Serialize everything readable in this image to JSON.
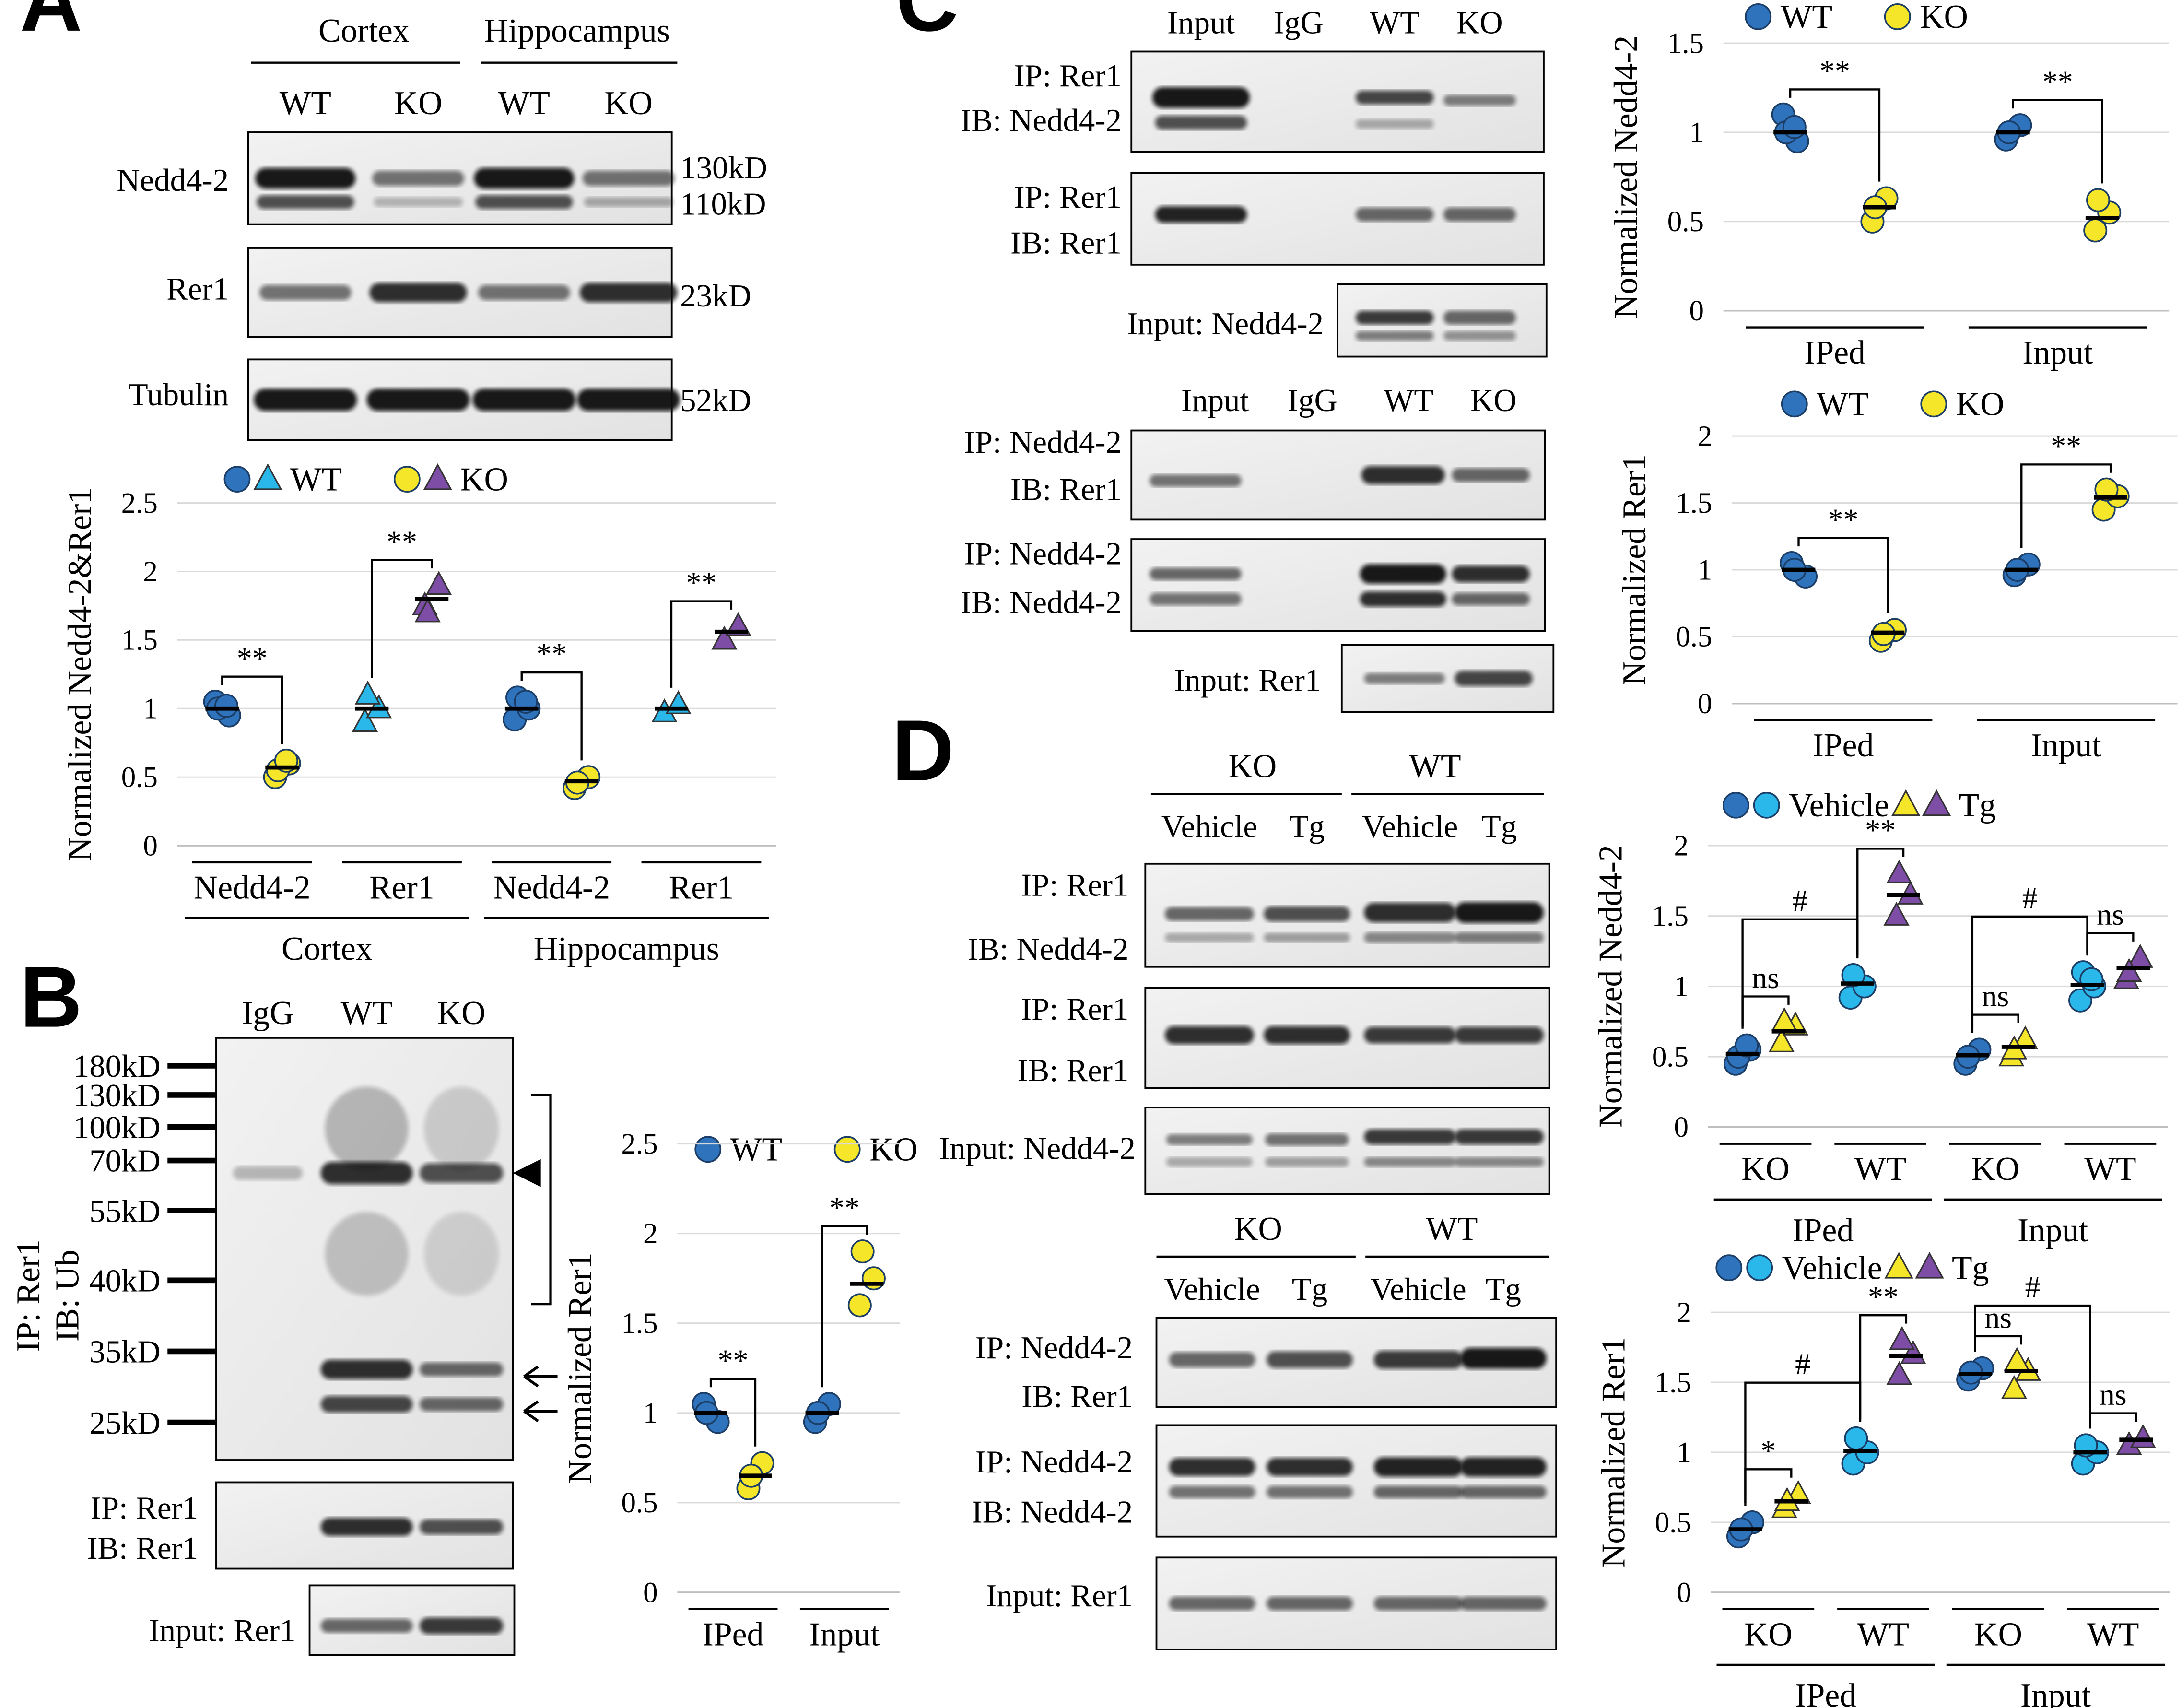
{
  "colors": {
    "wt_dark": "#2f73bd",
    "wt_light": "#2ab7ea",
    "ko_yellow": "#f5e62a",
    "ko_purple": "#7e4ea6",
    "grid": "#d9d9d9"
  },
  "panels": {
    "A": {
      "label": "A",
      "region_headers": [
        "Cortex",
        "Hippocampus"
      ],
      "lane_headers": [
        "WT",
        "KO",
        "WT",
        "KO"
      ],
      "blots": [
        {
          "label": "Nedd4-2",
          "sizes": [
            "130kD",
            "110kD"
          ]
        },
        {
          "label": "Rer1",
          "sizes": [
            "23kD"
          ]
        },
        {
          "label": "Tubulin",
          "sizes": [
            "52kD"
          ]
        }
      ],
      "legend": [
        "WT",
        "KO"
      ]
    },
    "B": {
      "label": "B",
      "lane_headers": [
        "IgG",
        "WT",
        "KO"
      ],
      "markers": [
        "180kD",
        "130kD",
        "100kD",
        "70kD",
        "55kD",
        "40kD",
        "35kD",
        "25kD"
      ],
      "side_label": [
        "IP: Rer1",
        "IB: Ub"
      ],
      "lower_blot": [
        "IP: Rer1",
        "IB: Rer1"
      ],
      "input_blot": "Input: Rer1",
      "legend": [
        "WT",
        "KO"
      ]
    },
    "C": {
      "label": "C",
      "top_lanes": [
        "Input",
        "IgG",
        "WT",
        "KO"
      ],
      "top_blots": [
        [
          "IP: Rer1",
          "IB: Nedd4-2"
        ],
        [
          "IP: Rer1",
          "IB: Rer1"
        ]
      ],
      "top_input": "Input: Nedd4-2",
      "bottom_lanes": [
        "Input",
        "IgG",
        "WT",
        "KO"
      ],
      "bottom_blots": [
        [
          "IP: Nedd4-2",
          "IB: Rer1"
        ],
        [
          "IP: Nedd4-2",
          "IB: Nedd4-2"
        ]
      ],
      "bottom_input": "Input: Rer1",
      "legend": [
        "WT",
        "KO"
      ]
    },
    "D": {
      "label": "D",
      "group_headers": [
        "KO",
        "WT"
      ],
      "lane_headers": [
        "Vehicle",
        "Tg",
        "Vehicle",
        "Tg"
      ],
      "top_blots": [
        [
          "IP: Rer1",
          "IB: Nedd4-2"
        ],
        [
          "IP: Rer1",
          "IB: Rer1"
        ]
      ],
      "top_input": "Input: Nedd4-2",
      "bottom_blots": [
        [
          "IP: Nedd4-2",
          "IB: Rer1"
        ],
        [
          "IP: Nedd4-2",
          "IB: Nedd4-2"
        ]
      ],
      "bottom_input": "Input: Rer1",
      "legend": [
        "Vehicle",
        "Tg"
      ]
    }
  },
  "chart_data": [
    {
      "id": "A",
      "type": "scatter",
      "ylabel": "Normalized Nedd4-2&Rer1",
      "ylim": [
        0,
        2.5
      ],
      "yticks": [
        "0",
        "0.5",
        "1",
        "1.5",
        "2",
        "2.5"
      ],
      "groups": [
        {
          "label": "Nedd4-2",
          "wt": [
            1.05,
            0.95,
            1.0,
            1.02
          ],
          "ko": [
            0.5,
            0.6,
            0.55,
            0.62
          ],
          "mean_wt": 1.0,
          "mean_ko": 0.57,
          "sig": "**"
        },
        {
          "label": "Rer1",
          "wt": [
            0.9,
            1.0,
            1.1
          ],
          "ko": [
            1.75,
            1.9,
            1.7
          ],
          "mean_wt": 1.0,
          "mean_ko": 1.8,
          "sig": "**"
        },
        {
          "label": "Nedd4-2",
          "wt": [
            0.92,
            1.0,
            1.08,
            1.05
          ],
          "ko": [
            0.42,
            0.5,
            0.46
          ],
          "mean_wt": 1.0,
          "mean_ko": 0.47,
          "sig": "**"
        },
        {
          "label": "Rer1",
          "wt": [
            0.97,
            1.03
          ],
          "ko": [
            1.5,
            1.6
          ],
          "mean_wt": 1.0,
          "mean_ko": 1.56,
          "sig": "**"
        }
      ],
      "outer_labels": [
        "Cortex",
        "Hippocampus"
      ]
    },
    {
      "id": "B",
      "type": "scatter",
      "ylabel": "Normalized Rer1",
      "ylim": [
        0,
        2.5
      ],
      "yticks": [
        "0",
        "0.5",
        "1",
        "1.5",
        "2",
        "2.5"
      ],
      "groups": [
        {
          "label": "IPed",
          "wt": [
            1.05,
            0.95,
            1.0
          ],
          "ko": [
            0.58,
            0.72,
            0.65
          ],
          "mean_wt": 1.0,
          "mean_ko": 0.65,
          "sig": "**"
        },
        {
          "label": "Input",
          "wt": [
            0.95,
            1.05,
            1.0
          ],
          "ko": [
            1.6,
            1.75,
            1.9
          ],
          "mean_wt": 1.0,
          "mean_ko": 1.72,
          "sig": "**"
        }
      ]
    },
    {
      "id": "C1",
      "type": "scatter",
      "ylabel": "Normalized Nedd4-2",
      "ylim": [
        0,
        1.5
      ],
      "yticks": [
        "0",
        "0.5",
        "1",
        "1.5"
      ],
      "groups": [
        {
          "label": "IPed",
          "wt": [
            1.1,
            0.95,
            1.0,
            1.03
          ],
          "ko": [
            0.5,
            0.63,
            0.58
          ],
          "mean_wt": 1.0,
          "mean_ko": 0.58,
          "sig": "**"
        },
        {
          "label": "Input",
          "wt": [
            0.96,
            1.04,
            1.0
          ],
          "ko": [
            0.45,
            0.55,
            0.62
          ],
          "mean_wt": 1.0,
          "mean_ko": 0.52,
          "sig": "**"
        }
      ]
    },
    {
      "id": "C2",
      "type": "scatter",
      "ylabel": "Normalized Rer1",
      "ylim": [
        0,
        2
      ],
      "yticks": [
        "0",
        "0.5",
        "1",
        "1.5",
        "2"
      ],
      "groups": [
        {
          "label": "IPed",
          "wt": [
            1.05,
            0.95,
            1.0
          ],
          "ko": [
            0.47,
            0.55,
            0.52
          ],
          "mean_wt": 1.0,
          "mean_ko": 0.53,
          "sig": "**"
        },
        {
          "label": "Input",
          "wt": [
            0.96,
            1.04,
            1.0
          ],
          "ko": [
            1.45,
            1.55,
            1.6
          ],
          "mean_wt": 1.0,
          "mean_ko": 1.54,
          "sig": "**"
        }
      ]
    },
    {
      "id": "D1",
      "type": "scatter",
      "ylabel": "Normalized Nedd4-2",
      "ylim": [
        0,
        2
      ],
      "yticks": [
        "0",
        "0.5",
        "1",
        "1.5",
        "2"
      ],
      "groups": [
        {
          "label": "KO",
          "veh": [
            0.45,
            0.55,
            0.5,
            0.58
          ],
          "tg": [
            0.6,
            0.72,
            0.75
          ],
          "mean_veh": 0.52,
          "mean_tg": 0.68,
          "sig": "ns"
        },
        {
          "label": "WT",
          "veh": [
            0.92,
            1.0,
            1.08
          ],
          "tg": [
            1.5,
            1.65,
            1.8
          ],
          "mean_veh": 1.02,
          "mean_tg": 1.65,
          "sig": "**"
        },
        {
          "label": "KO",
          "veh": [
            0.45,
            0.55,
            0.5
          ],
          "tg": [
            0.5,
            0.62,
            0.55
          ],
          "mean_veh": 0.51,
          "mean_tg": 0.57,
          "sig": "ns"
        },
        {
          "label": "WT",
          "veh": [
            0.9,
            1.0,
            1.1,
            1.05
          ],
          "tg": [
            1.05,
            1.2,
            1.1
          ],
          "mean_veh": 1.01,
          "mean_tg": 1.13,
          "sig": "ns"
        }
      ],
      "between": [
        {
          "from": 0,
          "to": 1,
          "sig": "#"
        },
        {
          "from": 2,
          "to": 3,
          "sig": "#"
        }
      ],
      "outer_labels": [
        "IPed",
        "Input"
      ]
    },
    {
      "id": "D2",
      "type": "scatter",
      "ylabel": "Normalized Rer1",
      "ylim": [
        0,
        2
      ],
      "yticks": [
        "0",
        "0.5",
        "1",
        "1.5",
        "2"
      ],
      "groups": [
        {
          "label": "KO",
          "veh": [
            0.4,
            0.5,
            0.45
          ],
          "tg": [
            0.6,
            0.7,
            0.65
          ],
          "mean_veh": 0.45,
          "mean_tg": 0.65,
          "sig": "*"
        },
        {
          "label": "WT",
          "veh": [
            0.92,
            1.0,
            1.1
          ],
          "tg": [
            1.55,
            1.7,
            1.8
          ],
          "mean_veh": 1.01,
          "mean_tg": 1.69,
          "sig": "**"
        },
        {
          "label": "KO",
          "veh": [
            1.52,
            1.6,
            1.57
          ],
          "tg": [
            1.45,
            1.58,
            1.65
          ],
          "mean_veh": 1.56,
          "mean_tg": 1.58,
          "sig": "ns"
        },
        {
          "label": "WT",
          "veh": [
            0.92,
            1.0,
            1.05
          ],
          "tg": [
            1.05,
            1.1
          ],
          "mean_veh": 1.0,
          "mean_tg": 1.09,
          "sig": "ns"
        }
      ],
      "between": [
        {
          "from": 0,
          "to": 1,
          "sig": "#"
        },
        {
          "from": 2,
          "to": 3,
          "sig": "#"
        }
      ],
      "outer_labels": [
        "IPed",
        "Input"
      ]
    }
  ]
}
